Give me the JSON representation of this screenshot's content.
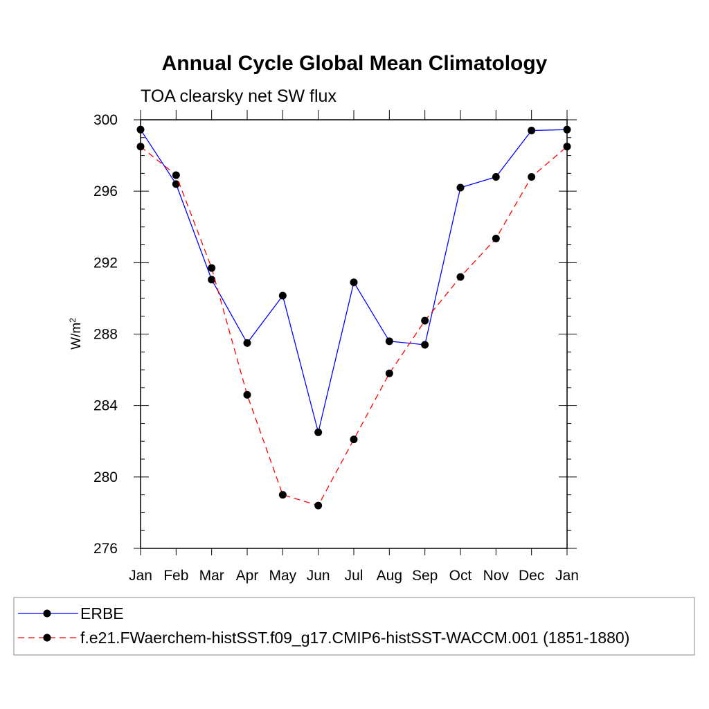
{
  "chart_data": {
    "type": "line",
    "title": "Annual Cycle Global Mean Climatology",
    "subtitle": "TOA clearsky net SW flux",
    "ylabel": "W/m",
    "ylabel_superscript": "2",
    "xlabel": "",
    "categories": [
      "Jan",
      "Feb",
      "Mar",
      "Apr",
      "May",
      "Jun",
      "Jul",
      "Aug",
      "Sep",
      "Oct",
      "Nov",
      "Dec",
      "Jan"
    ],
    "ylim": [
      276,
      300
    ],
    "yticks": [
      "276",
      "280",
      "284",
      "288",
      "292",
      "296",
      "300"
    ],
    "grid": false,
    "legend_position": "bottom",
    "series": [
      {
        "name": "ERBE",
        "color": "#0000ff",
        "line_style": "solid",
        "marker": "filled-circle",
        "values": [
          299.45,
          296.4,
          291.05,
          287.5,
          290.15,
          282.5,
          290.9,
          287.6,
          287.4,
          296.2,
          296.8,
          299.4,
          299.45
        ]
      },
      {
        "name": "f.e21.FWaerchem-histSST.f09_g17.CMIP6-histSST-WACCM.001 (1851-1880)",
        "color": "#ff0000",
        "line_style": "dashed",
        "marker": "filled-circle",
        "values": [
          298.5,
          296.9,
          291.7,
          284.6,
          279.0,
          278.4,
          282.1,
          285.8,
          288.75,
          291.2,
          293.35,
          296.8,
          298.5
        ]
      }
    ]
  }
}
